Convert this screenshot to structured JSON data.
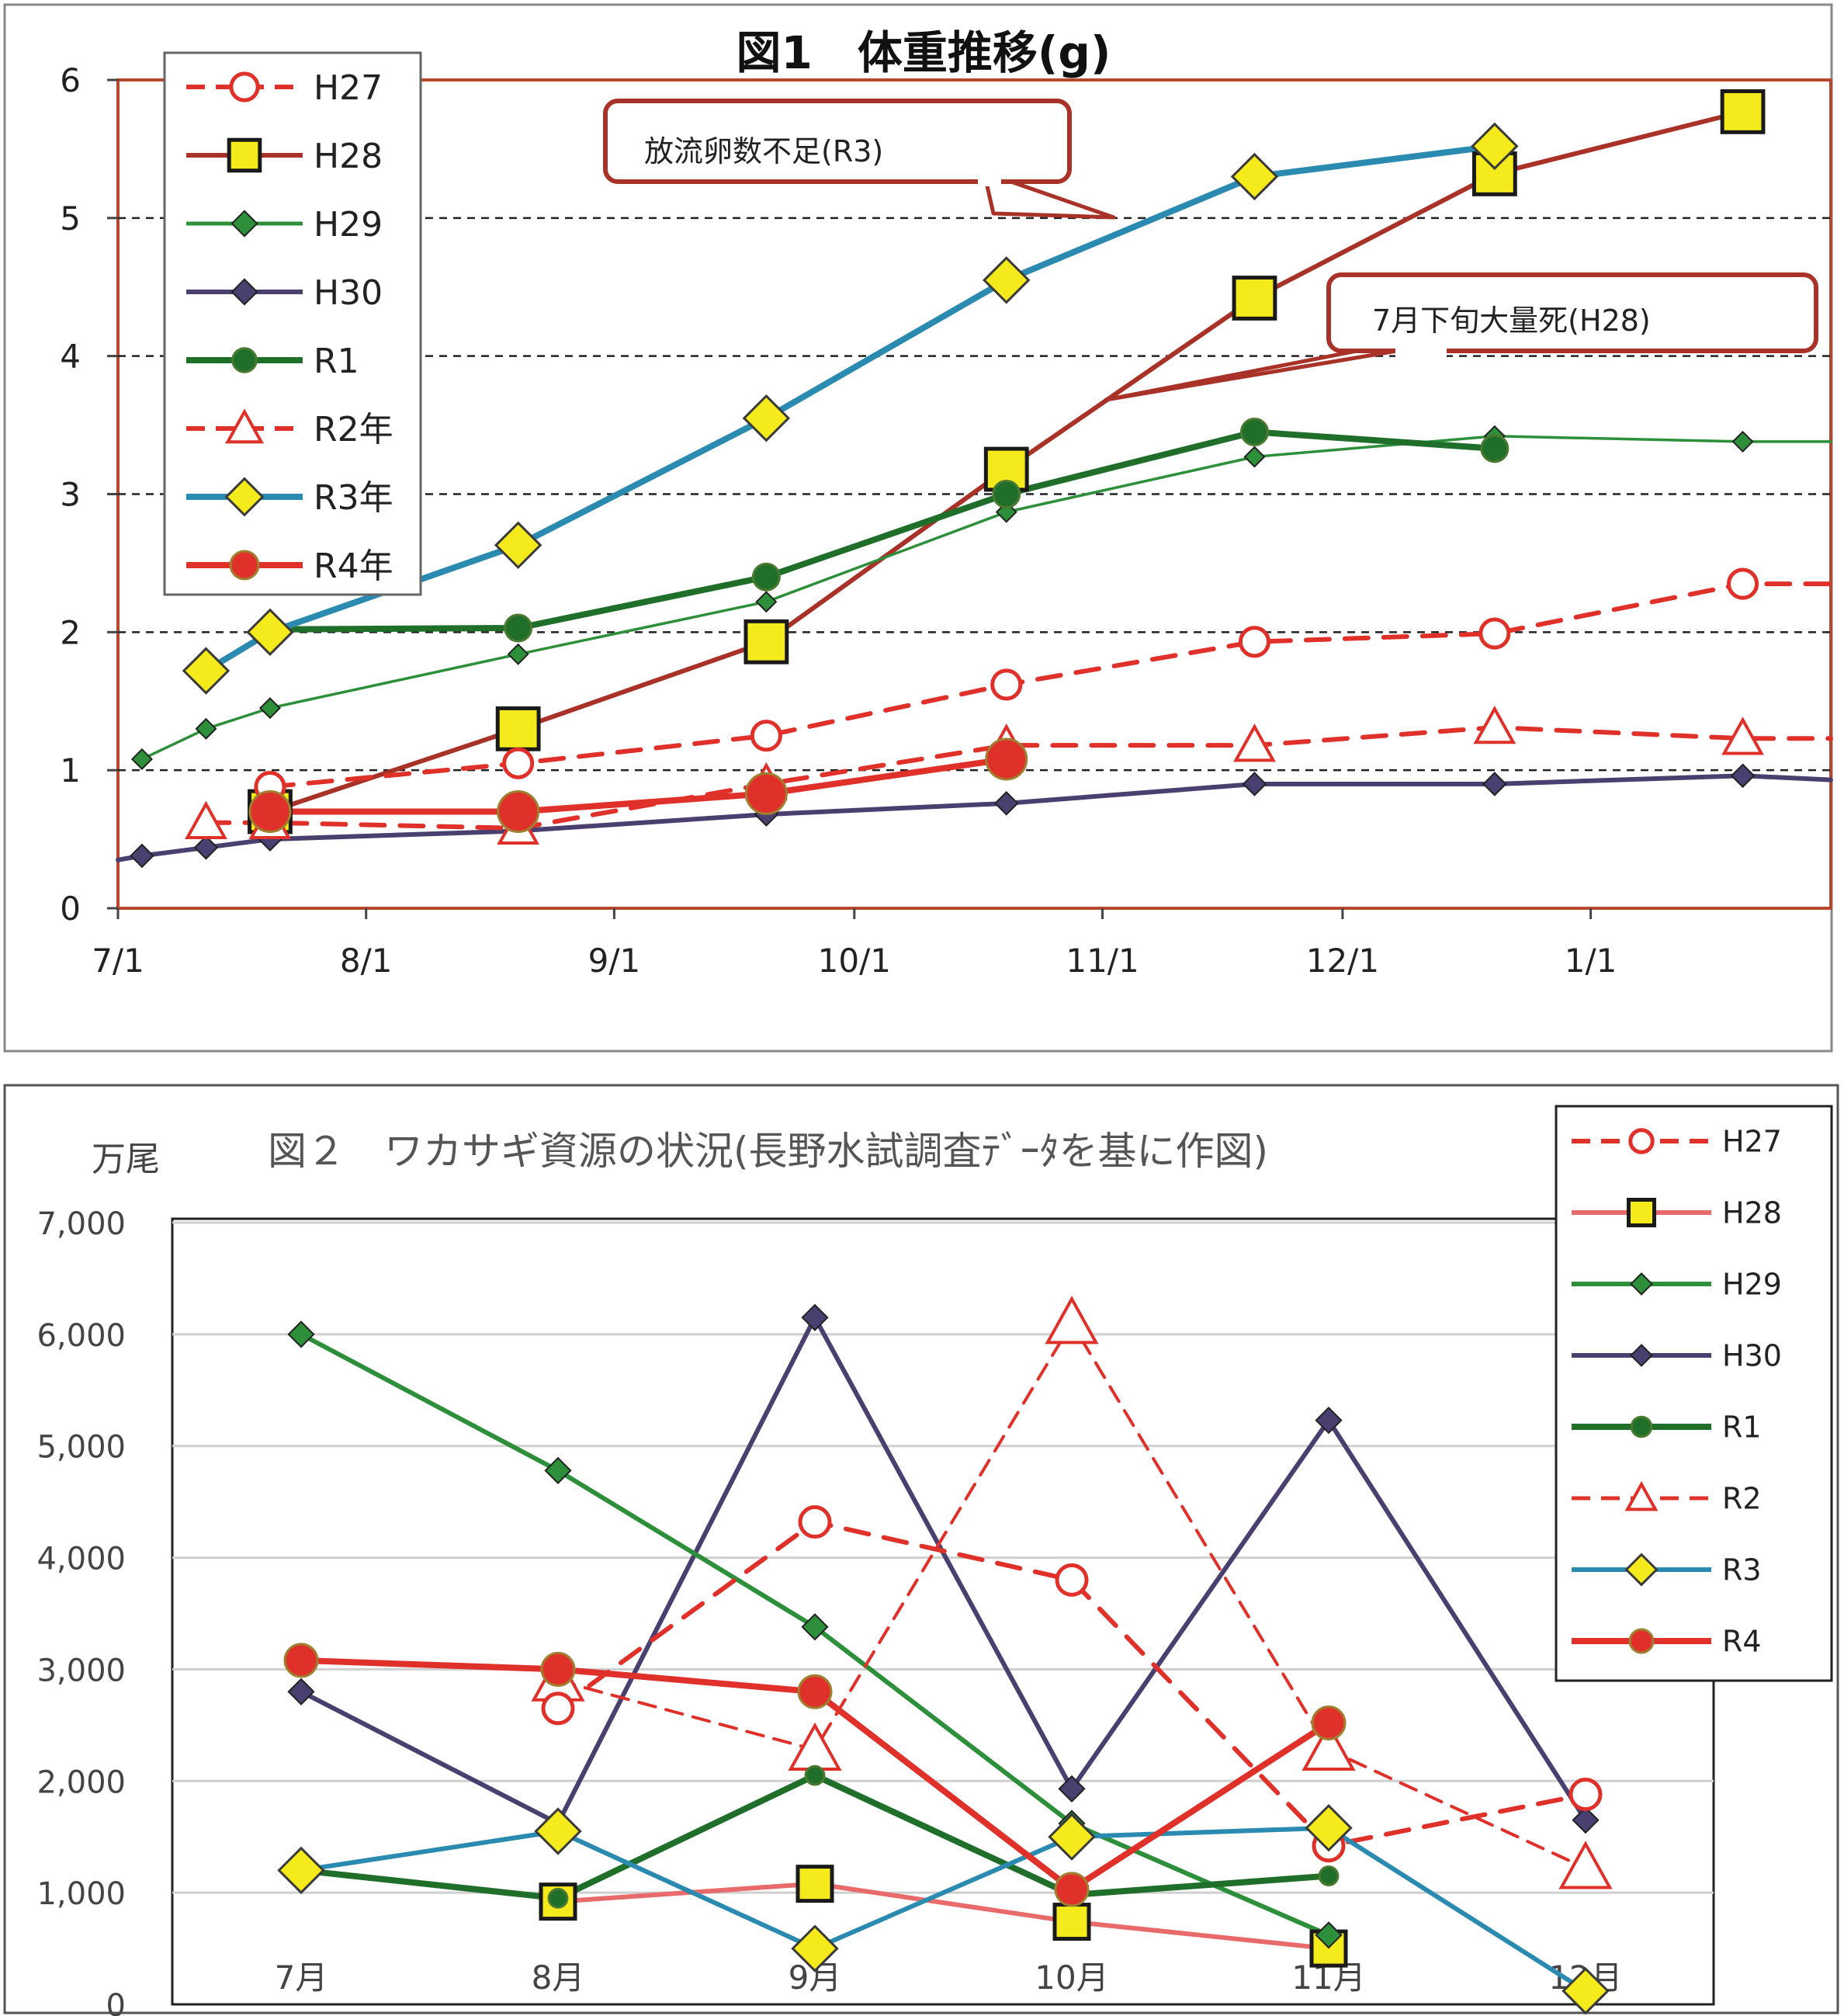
{
  "chart_data": [
    {
      "type": "line",
      "title": "図1　体重推移(g)",
      "xlabel": "",
      "ylabel": "",
      "ylim": [
        0,
        6
      ],
      "yticks": [
        "0",
        "1",
        "2",
        "3",
        "4",
        "5",
        "6"
      ],
      "xticks": [
        "7/1",
        "8/1",
        "9/1",
        "10/1",
        "11/1",
        "12/1",
        "1/1"
      ],
      "x_axis": "date",
      "xlim": [
        "2000-07-01",
        "2001-01-31"
      ],
      "grid": "dashed horizontal",
      "legend_position": "top-left",
      "annotations": [
        "放流卵数不足(R3)",
        "7月下旬大量死(H28)"
      ],
      "series": [
        {
          "name": "H27",
          "color": "#e0302a",
          "style": "dashed",
          "marker": "open-circle",
          "points": [
            [
              "2000-07-20",
              0.88
            ],
            [
              "2000-08-20",
              1.05
            ],
            [
              "2000-09-20",
              1.25
            ],
            [
              "2000-10-20",
              1.62
            ],
            [
              "2000-11-20",
              1.93
            ],
            [
              "2000-12-20",
              1.99
            ],
            [
              "2001-01-20",
              2.35
            ],
            [
              "2001-01-31",
              2.35
            ]
          ]
        },
        {
          "name": "H28",
          "color": "#a83228",
          "style": "solid",
          "marker": "yellow-square",
          "points": [
            [
              "2000-07-20",
              0.7
            ],
            [
              "2000-08-20",
              1.3
            ],
            [
              "2000-09-20",
              1.93
            ],
            [
              "2000-10-20",
              3.18
            ],
            [
              "2000-11-20",
              4.42
            ],
            [
              "2000-12-20",
              5.32
            ],
            [
              "2001-01-20",
              5.77
            ]
          ]
        },
        {
          "name": "H29",
          "color": "#2e8f3a",
          "style": "thin",
          "marker": "green-diamond",
          "points": [
            [
              "2000-07-04",
              1.08
            ],
            [
              "2000-07-12",
              1.3
            ],
            [
              "2000-07-20",
              1.45
            ],
            [
              "2000-08-20",
              1.84
            ],
            [
              "2000-09-20",
              2.22
            ],
            [
              "2000-10-20",
              2.87
            ],
            [
              "2000-11-20",
              3.27
            ],
            [
              "2000-12-20",
              3.42
            ],
            [
              "2001-01-20",
              3.38
            ],
            [
              "2001-01-31",
              3.38
            ]
          ]
        },
        {
          "name": "H30",
          "color": "#4a4070",
          "style": "solid",
          "marker": "purple-diamond",
          "points": [
            [
              "2000-07-01",
              0.35
            ],
            [
              "2000-07-04",
              0.38
            ],
            [
              "2000-07-12",
              0.44
            ],
            [
              "2000-07-20",
              0.5
            ],
            [
              "2000-08-20",
              0.56
            ],
            [
              "2000-09-20",
              0.68
            ],
            [
              "2000-10-20",
              0.76
            ],
            [
              "2000-11-20",
              0.9
            ],
            [
              "2000-12-20",
              0.9
            ],
            [
              "2001-01-20",
              0.96
            ],
            [
              "2001-01-31",
              0.93
            ]
          ]
        },
        {
          "name": "R1",
          "color": "#1f6e2a",
          "style": "thick",
          "marker": "green-circle",
          "points": [
            [
              "2000-07-20",
              2.02
            ],
            [
              "2000-08-20",
              2.03
            ],
            [
              "2000-09-20",
              2.4
            ],
            [
              "2000-10-20",
              3.0
            ],
            [
              "2000-11-20",
              3.45
            ],
            [
              "2000-12-20",
              3.33
            ]
          ]
        },
        {
          "name": "R2年",
          "color": "#e0302a",
          "style": "dashed",
          "marker": "open-triangle",
          "points": [
            [
              "2000-07-12",
              0.62
            ],
            [
              "2000-07-20",
              0.62
            ],
            [
              "2000-08-20",
              0.58
            ],
            [
              "2000-09-20",
              0.9
            ],
            [
              "2000-10-20",
              1.18
            ],
            [
              "2000-11-20",
              1.18
            ],
            [
              "2000-12-20",
              1.31
            ],
            [
              "2001-01-20",
              1.23
            ],
            [
              "2001-01-31",
              1.23
            ]
          ]
        },
        {
          "name": "R3年",
          "color": "#2a8ab0",
          "style": "thick",
          "marker": "yellow-diamond",
          "points": [
            [
              "2000-07-12",
              1.72
            ],
            [
              "2000-07-20",
              2.0
            ],
            [
              "2000-08-20",
              2.63
            ],
            [
              "2000-09-20",
              3.55
            ],
            [
              "2000-10-20",
              4.55
            ],
            [
              "2000-11-20",
              5.3
            ],
            [
              "2000-12-20",
              5.52
            ]
          ]
        },
        {
          "name": "R4年",
          "color": "#e0302a",
          "style": "thick",
          "marker": "red-circle",
          "points": [
            [
              "2000-07-20",
              0.7
            ],
            [
              "2000-08-20",
              0.7
            ],
            [
              "2000-09-20",
              0.83
            ],
            [
              "2000-10-20",
              1.08
            ]
          ]
        }
      ]
    },
    {
      "type": "line",
      "title": "図２　ワカサギ資源の状況(長野水試調査ﾃﾞｰﾀを基に作図)",
      "xlabel": "",
      "ylabel": "万尾",
      "ylim": [
        0,
        7000
      ],
      "yticks": [
        "0",
        "1,000",
        "2,000",
        "3,000",
        "4,000",
        "5,000",
        "6,000",
        "7,000"
      ],
      "categories": [
        "7月",
        "8月",
        "9月",
        "10月",
        "11月",
        "12月"
      ],
      "grid": "horizontal",
      "legend_position": "right",
      "series": [
        {
          "name": "H27",
          "color": "#e0302a",
          "style": "dashed",
          "marker": "open-circle",
          "values": [
            null,
            2650,
            4320,
            3800,
            1420,
            1880
          ]
        },
        {
          "name": "H28",
          "color": "#e86a6a",
          "style": "solid",
          "marker": "yellow-square",
          "values": [
            null,
            920,
            1080,
            740,
            500,
            null
          ]
        },
        {
          "name": "H29",
          "color": "#2e8f3a",
          "style": "solid",
          "marker": "green-diamond",
          "values": [
            6000,
            4780,
            3380,
            1620,
            620,
            null
          ]
        },
        {
          "name": "H30",
          "color": "#4a4070",
          "style": "solid",
          "marker": "purple-diamond",
          "values": [
            2800,
            1620,
            6150,
            1930,
            5230,
            1650
          ]
        },
        {
          "name": "R1",
          "color": "#1f6e2a",
          "style": "thick",
          "marker": "green-circle",
          "values": [
            1200,
            950,
            2050,
            980,
            1150,
            null
          ]
        },
        {
          "name": "R2",
          "color": "#e0302a",
          "style": "dashed-thin",
          "marker": "open-triangle",
          "values": [
            null,
            2900,
            2280,
            6100,
            2280,
            1220
          ]
        },
        {
          "name": "R3",
          "color": "#2a8ab0",
          "style": "solid",
          "marker": "yellow-diamond",
          "values": [
            1200,
            1550,
            500,
            1500,
            1580,
            120
          ]
        },
        {
          "name": "R4",
          "color": "#e0302a",
          "style": "thick",
          "marker": "red-circle",
          "values": [
            3080,
            3000,
            2800,
            1030,
            2520,
            null
          ]
        }
      ]
    }
  ]
}
